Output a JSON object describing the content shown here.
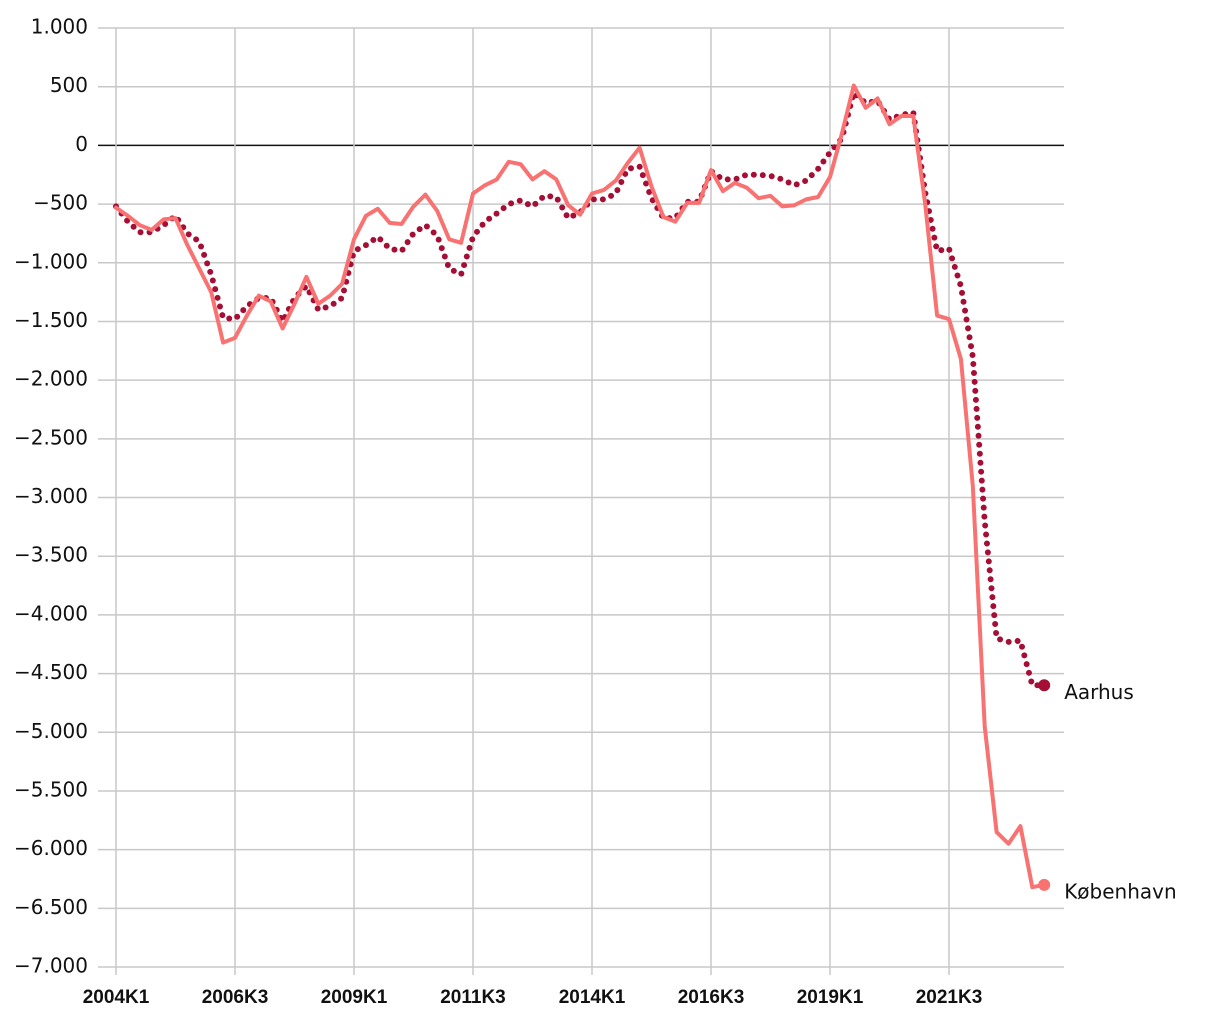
{
  "chart_data": {
    "type": "line",
    "categories": [
      "2004K1",
      null,
      null,
      null,
      null,
      null,
      null,
      null,
      null,
      null,
      "2006K3",
      null,
      null,
      null,
      null,
      null,
      null,
      null,
      null,
      null,
      "2009K1",
      null,
      null,
      null,
      null,
      null,
      null,
      null,
      null,
      null,
      "2011K3",
      null,
      null,
      null,
      null,
      null,
      null,
      null,
      null,
      null,
      "2014K1",
      null,
      null,
      null,
      null,
      null,
      null,
      null,
      null,
      null,
      "2016K3",
      null,
      null,
      null,
      null,
      null,
      null,
      null,
      null,
      null,
      "2019K1",
      null,
      null,
      null,
      null,
      null,
      null,
      null,
      null,
      null,
      "2021K3",
      null,
      null,
      null,
      null,
      null,
      null,
      null,
      null
    ],
    "series": [
      {
        "name": "Aarhus",
        "color": "#a50f35",
        "style": "dotted",
        "values": [
          -520,
          -650,
          -740,
          -740,
          -680,
          -600,
          -750,
          -820,
          -1100,
          -1470,
          -1480,
          -1370,
          -1300,
          -1300,
          -1500,
          -1300,
          -1200,
          -1400,
          -1370,
          -1300,
          -900,
          -850,
          -780,
          -880,
          -900,
          -750,
          -680,
          -770,
          -1050,
          -1100,
          -780,
          -650,
          -580,
          -500,
          -470,
          -520,
          -430,
          -440,
          -620,
          -570,
          -460,
          -460,
          -410,
          -200,
          -180,
          -450,
          -620,
          -620,
          -480,
          -480,
          -220,
          -290,
          -290,
          -250,
          -250,
          -260,
          -290,
          -340,
          -300,
          -200,
          -60,
          60,
          450,
          360,
          380,
          220,
          260,
          280,
          -400,
          -900,
          -880,
          -1200,
          -1800,
          -3200,
          -4200,
          -4230,
          -4220,
          -4600,
          -4600
        ]
      },
      {
        "name": "København",
        "color": "#f87272",
        "style": "solid",
        "values": [
          -530,
          -600,
          -680,
          -720,
          -630,
          -620,
          -850,
          -1050,
          -1250,
          -1680,
          -1640,
          -1450,
          -1280,
          -1330,
          -1560,
          -1350,
          -1120,
          -1350,
          -1280,
          -1180,
          -800,
          -600,
          -540,
          -660,
          -670,
          -520,
          -420,
          -560,
          -800,
          -830,
          -410,
          -340,
          -290,
          -140,
          -160,
          -290,
          -220,
          -290,
          -510,
          -590,
          -410,
          -380,
          -300,
          -150,
          -20,
          -350,
          -610,
          -650,
          -490,
          -490,
          -210,
          -390,
          -320,
          -360,
          -450,
          -430,
          -520,
          -510,
          -460,
          -440,
          -270,
          100,
          510,
          320,
          400,
          180,
          250,
          250,
          -500,
          -1450,
          -1480,
          -1820,
          -2900,
          -4950,
          -5850,
          -5950,
          -5800,
          -6320,
          -6300
        ]
      }
    ],
    "ylim": [
      -7000,
      1000
    ],
    "yticks": [
      {
        "value": 1000,
        "label": "1.000"
      },
      500,
      0,
      {
        "value": -500,
        "label": "−500"
      },
      {
        "value": -1000,
        "label": "−1.000"
      },
      {
        "value": -1500,
        "label": "−1.500"
      },
      {
        "value": -2000,
        "label": "−2.000"
      },
      {
        "value": -2500,
        "label": "−2.500"
      },
      {
        "value": -3000,
        "label": "−3.000"
      },
      {
        "value": -3500,
        "label": "−3.500"
      },
      {
        "value": -4000,
        "label": "−4.000"
      },
      {
        "value": -4500,
        "label": "−4.500"
      },
      {
        "value": -5000,
        "label": "−5.000"
      },
      {
        "value": -5500,
        "label": "−5.500"
      },
      {
        "value": -6000,
        "label": "−6.000"
      },
      {
        "value": -6500,
        "label": "−6.500"
      },
      {
        "value": -7000,
        "label": "−7.000"
      }
    ],
    "grid": true
  }
}
